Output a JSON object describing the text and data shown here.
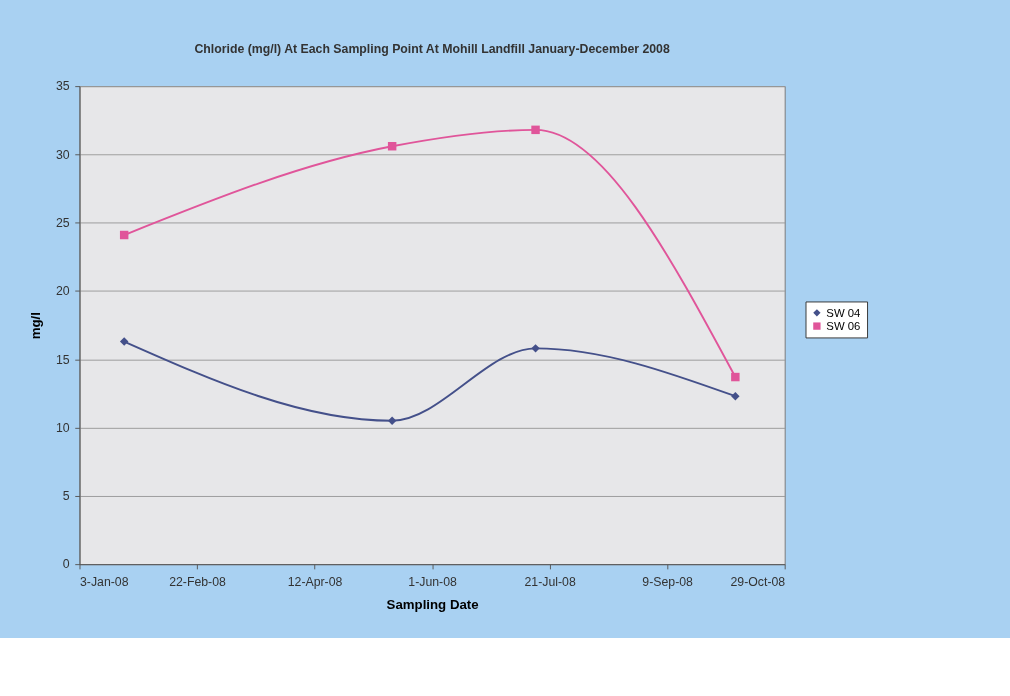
{
  "chart_data": {
    "type": "line",
    "title": "Chloride (mg/l) At Each Sampling Point At Mohill Landfill January-December 2008",
    "xlabel": "Sampling Date",
    "ylabel": "mg/l",
    "x": [
      "2008-01-22",
      "2008-05-15",
      "2008-07-15",
      "2008-10-08"
    ],
    "series": [
      {
        "name": "SW 04",
        "color": "#44508a",
        "marker": "diamond",
        "values": [
          16.3,
          10.5,
          15.8,
          12.3
        ]
      },
      {
        "name": "SW 06",
        "color": "#e0559a",
        "marker": "square",
        "values": [
          24.1,
          30.6,
          31.8,
          13.7
        ]
      }
    ],
    "xlim": [
      "2008-01-03",
      "2008-10-29"
    ],
    "xticks": [
      {
        "value": "2008-01-03",
        "label": "3-Jan-08"
      },
      {
        "value": "2008-02-22",
        "label": "22-Feb-08"
      },
      {
        "value": "2008-04-12",
        "label": "12-Apr-08"
      },
      {
        "value": "2008-06-01",
        "label": "1-Jun-08"
      },
      {
        "value": "2008-07-21",
        "label": "21-Jul-08"
      },
      {
        "value": "2008-09-09",
        "label": "9-Sep-08"
      },
      {
        "value": "2008-10-29",
        "label": "29-Oct-08"
      }
    ],
    "ylim": [
      0,
      35
    ],
    "yticks": [
      0,
      5,
      10,
      15,
      20,
      25,
      30,
      35
    ],
    "grid": "y",
    "legend": "right",
    "line_style": "solid"
  }
}
